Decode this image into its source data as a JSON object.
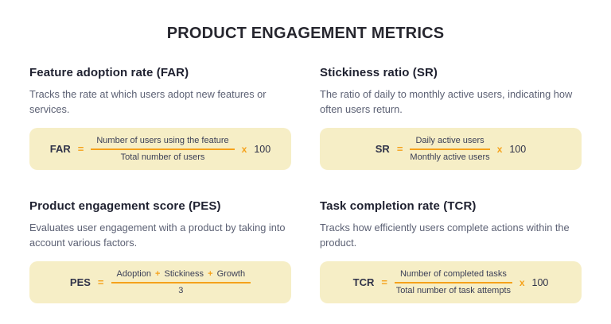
{
  "page_title": "PRODUCT ENGAGEMENT METRICS",
  "colors": {
    "accent_orange": "#f5a21b",
    "formula_box_background": "#f6eec6",
    "heading_text": "#1f2130",
    "body_text": "#5c6174",
    "formula_text": "#3a3e56"
  },
  "cards": [
    {
      "title": "Feature adoption rate (FAR)",
      "description": "Tracks the rate at which users adopt new features or services.",
      "formula": {
        "label": "FAR",
        "equals": "=",
        "numerator": "Number of users using the feature",
        "denominator": "Total number of users",
        "times": "x",
        "factor": "100"
      }
    },
    {
      "title": "Stickiness ratio (SR)",
      "description": "The ratio of daily to monthly active users, indicating how often users return.",
      "formula": {
        "label": "SR",
        "equals": "=",
        "numerator": "Daily active users",
        "denominator": "Monthly active users",
        "times": "x",
        "factor": "100"
      }
    },
    {
      "title": "Product engagement score (PES)",
      "description": "Evaluates user engagement with a product by taking into account various factors.",
      "formula": {
        "label": "PES",
        "equals": "=",
        "numerator_parts": [
          "Adoption",
          "Stickiness",
          "Growth"
        ],
        "plus": "+",
        "denominator": "3"
      }
    },
    {
      "title": "Task completion rate (TCR)",
      "description": "Tracks how efficiently users complete actions within the product.",
      "formula": {
        "label": "TCR",
        "equals": "=",
        "numerator": "Number of completed tasks",
        "denominator": "Total number of task attempts",
        "times": "x",
        "factor": "100"
      }
    }
  ]
}
